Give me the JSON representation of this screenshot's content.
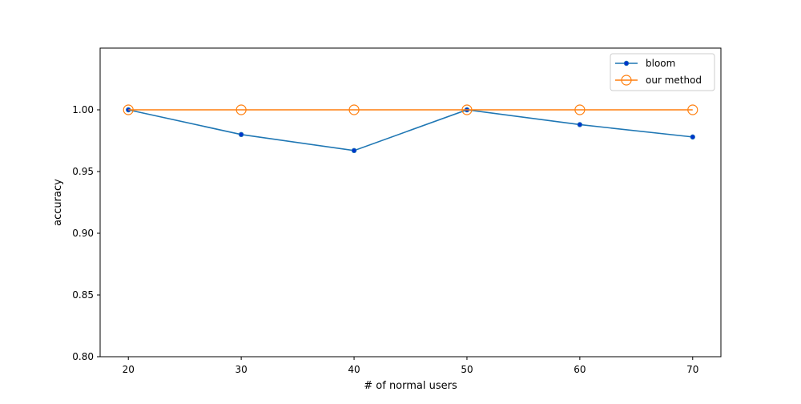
{
  "chart_data": {
    "type": "line",
    "title": "",
    "xlabel": "# of normal users",
    "ylabel": "accuracy",
    "x": [
      20,
      30,
      40,
      50,
      60,
      70
    ],
    "xlim": [
      17.5,
      72.5
    ],
    "ylim": [
      0.8,
      1.05
    ],
    "xticks": [
      20,
      30,
      40,
      50,
      60,
      70
    ],
    "xtick_labels": [
      "20",
      "30",
      "40",
      "50",
      "60",
      "70"
    ],
    "yticks": [
      0.8,
      0.85,
      0.9,
      0.95,
      1.0
    ],
    "ytick_labels": [
      "0.80",
      "0.85",
      "0.90",
      "0.95",
      "1.00"
    ],
    "grid": false,
    "legend_position": "top-right",
    "series": [
      {
        "name": "bloom",
        "values": [
          1.0,
          0.98,
          0.967,
          1.0,
          0.988,
          0.978
        ],
        "color": "#1f77b4",
        "marker": "filled-dot",
        "marker_color": "#0033cc"
      },
      {
        "name": "our method",
        "values": [
          1.0,
          1.0,
          1.0,
          1.0,
          1.0,
          1.0
        ],
        "color": "#ff7f0e",
        "marker": "open-circle",
        "marker_color": "#ff7f0e"
      }
    ]
  }
}
